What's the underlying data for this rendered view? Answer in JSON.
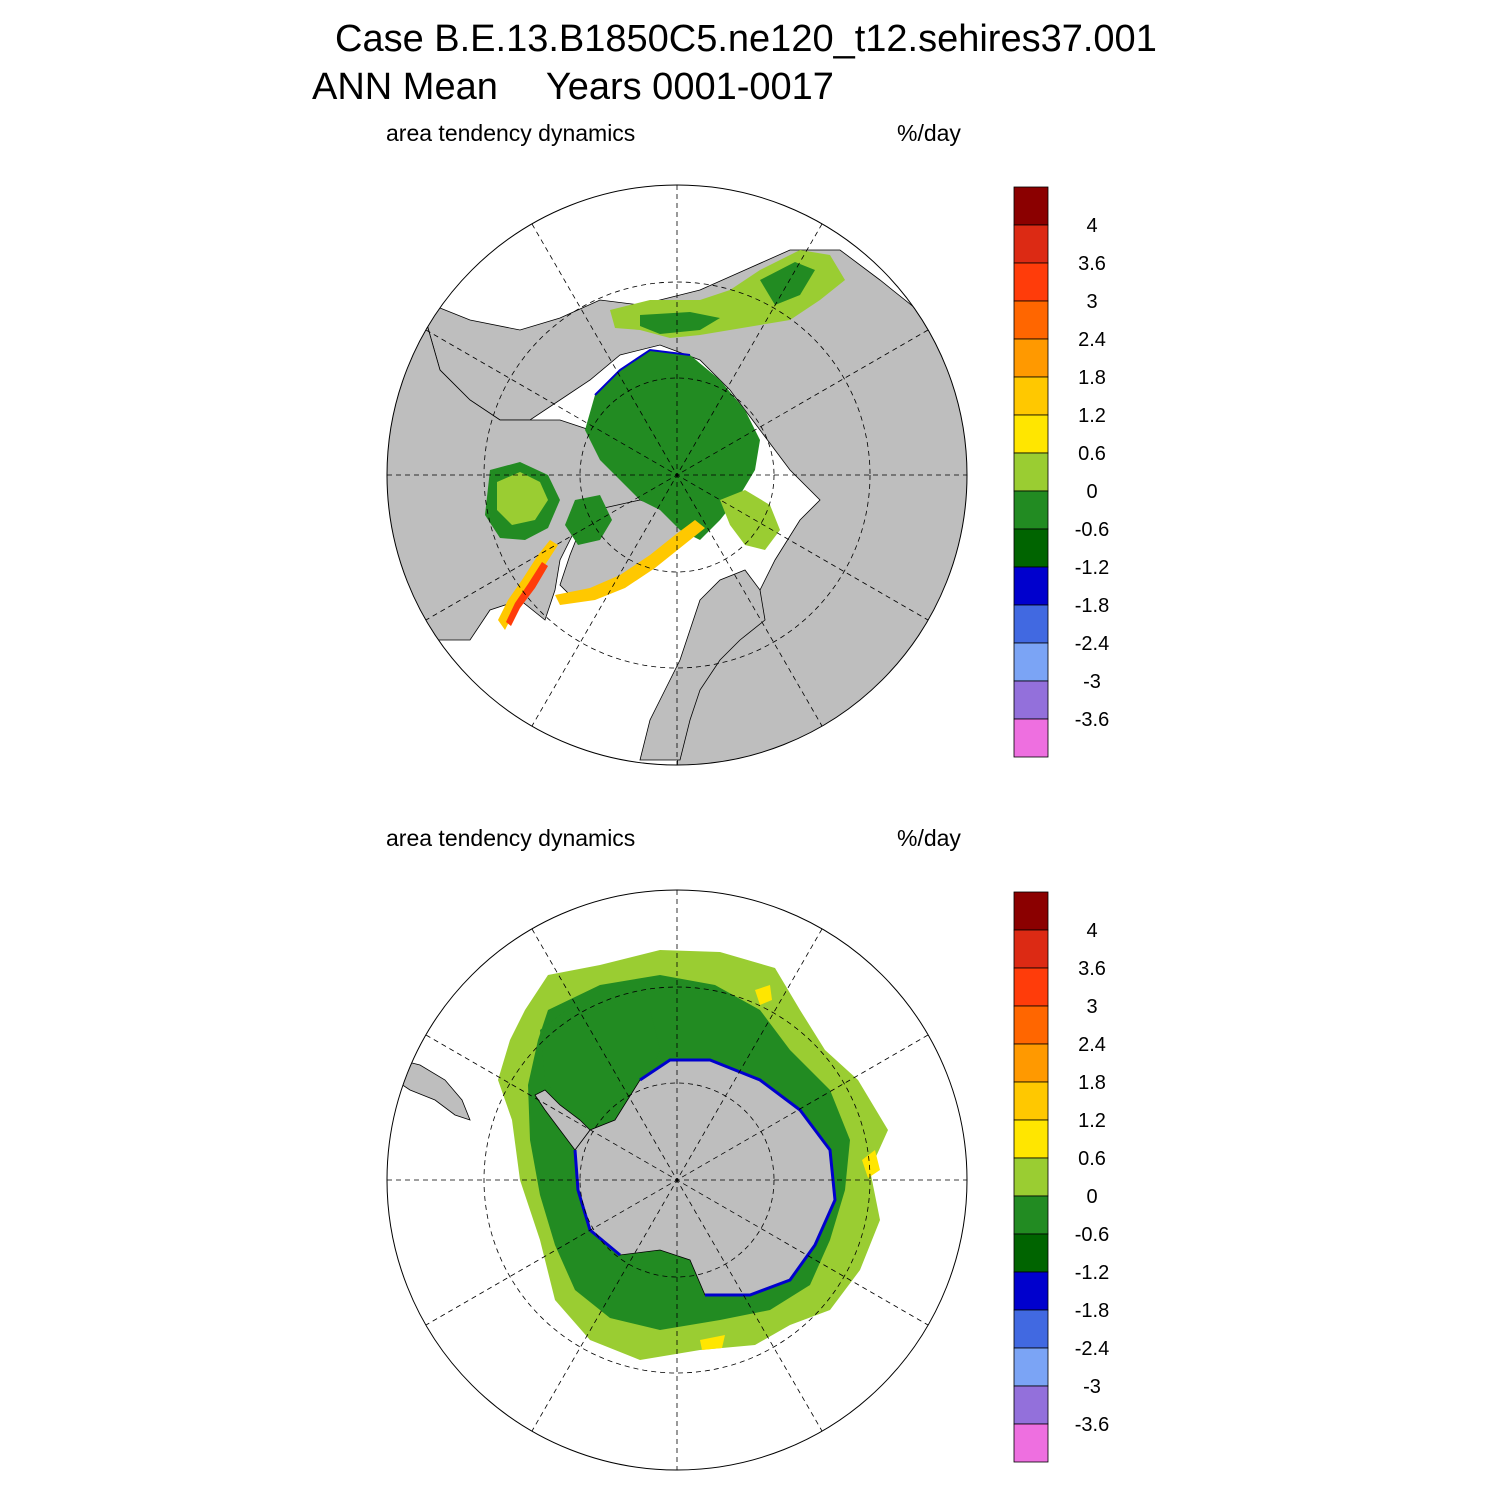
{
  "title": {
    "case_line": "Case B.E.13.B1850C5.ne120_t12.sehires37.001",
    "mean_label": "ANN Mean",
    "years_label": "Years 0001-0017"
  },
  "panels": [
    {
      "id": "north",
      "hemisphere": "northern",
      "left_label": "area tendency dynamics",
      "units": "%/day"
    },
    {
      "id": "south",
      "hemisphere": "southern",
      "left_label": "area tendency dynamics",
      "units": "%/day"
    }
  ],
  "colorbar": {
    "tick_labels": [
      "4",
      "3.6",
      "3",
      "2.4",
      "1.8",
      "1.2",
      "0.6",
      "0",
      "-0.6",
      "-1.2",
      "-1.8",
      "-2.4",
      "-3",
      "-3.6"
    ],
    "colors_top_to_bottom": [
      "#8b0000",
      "#dc2a14",
      "#ff3c0a",
      "#ff6600",
      "#ff9900",
      "#ffc800",
      "#ffe600",
      "#9acd32",
      "#228b22",
      "#006400",
      "#0000cd",
      "#4169e1",
      "#7ba4f5",
      "#9370db",
      "#ee6fe0"
    ]
  },
  "colors": {
    "land": "#bebebe",
    "ocean_no_ice": "#ffffff",
    "ice_neg_small": "#228b22",
    "ice_pos_small": "#9acd32",
    "ice_neg_mid": "#006400"
  }
}
